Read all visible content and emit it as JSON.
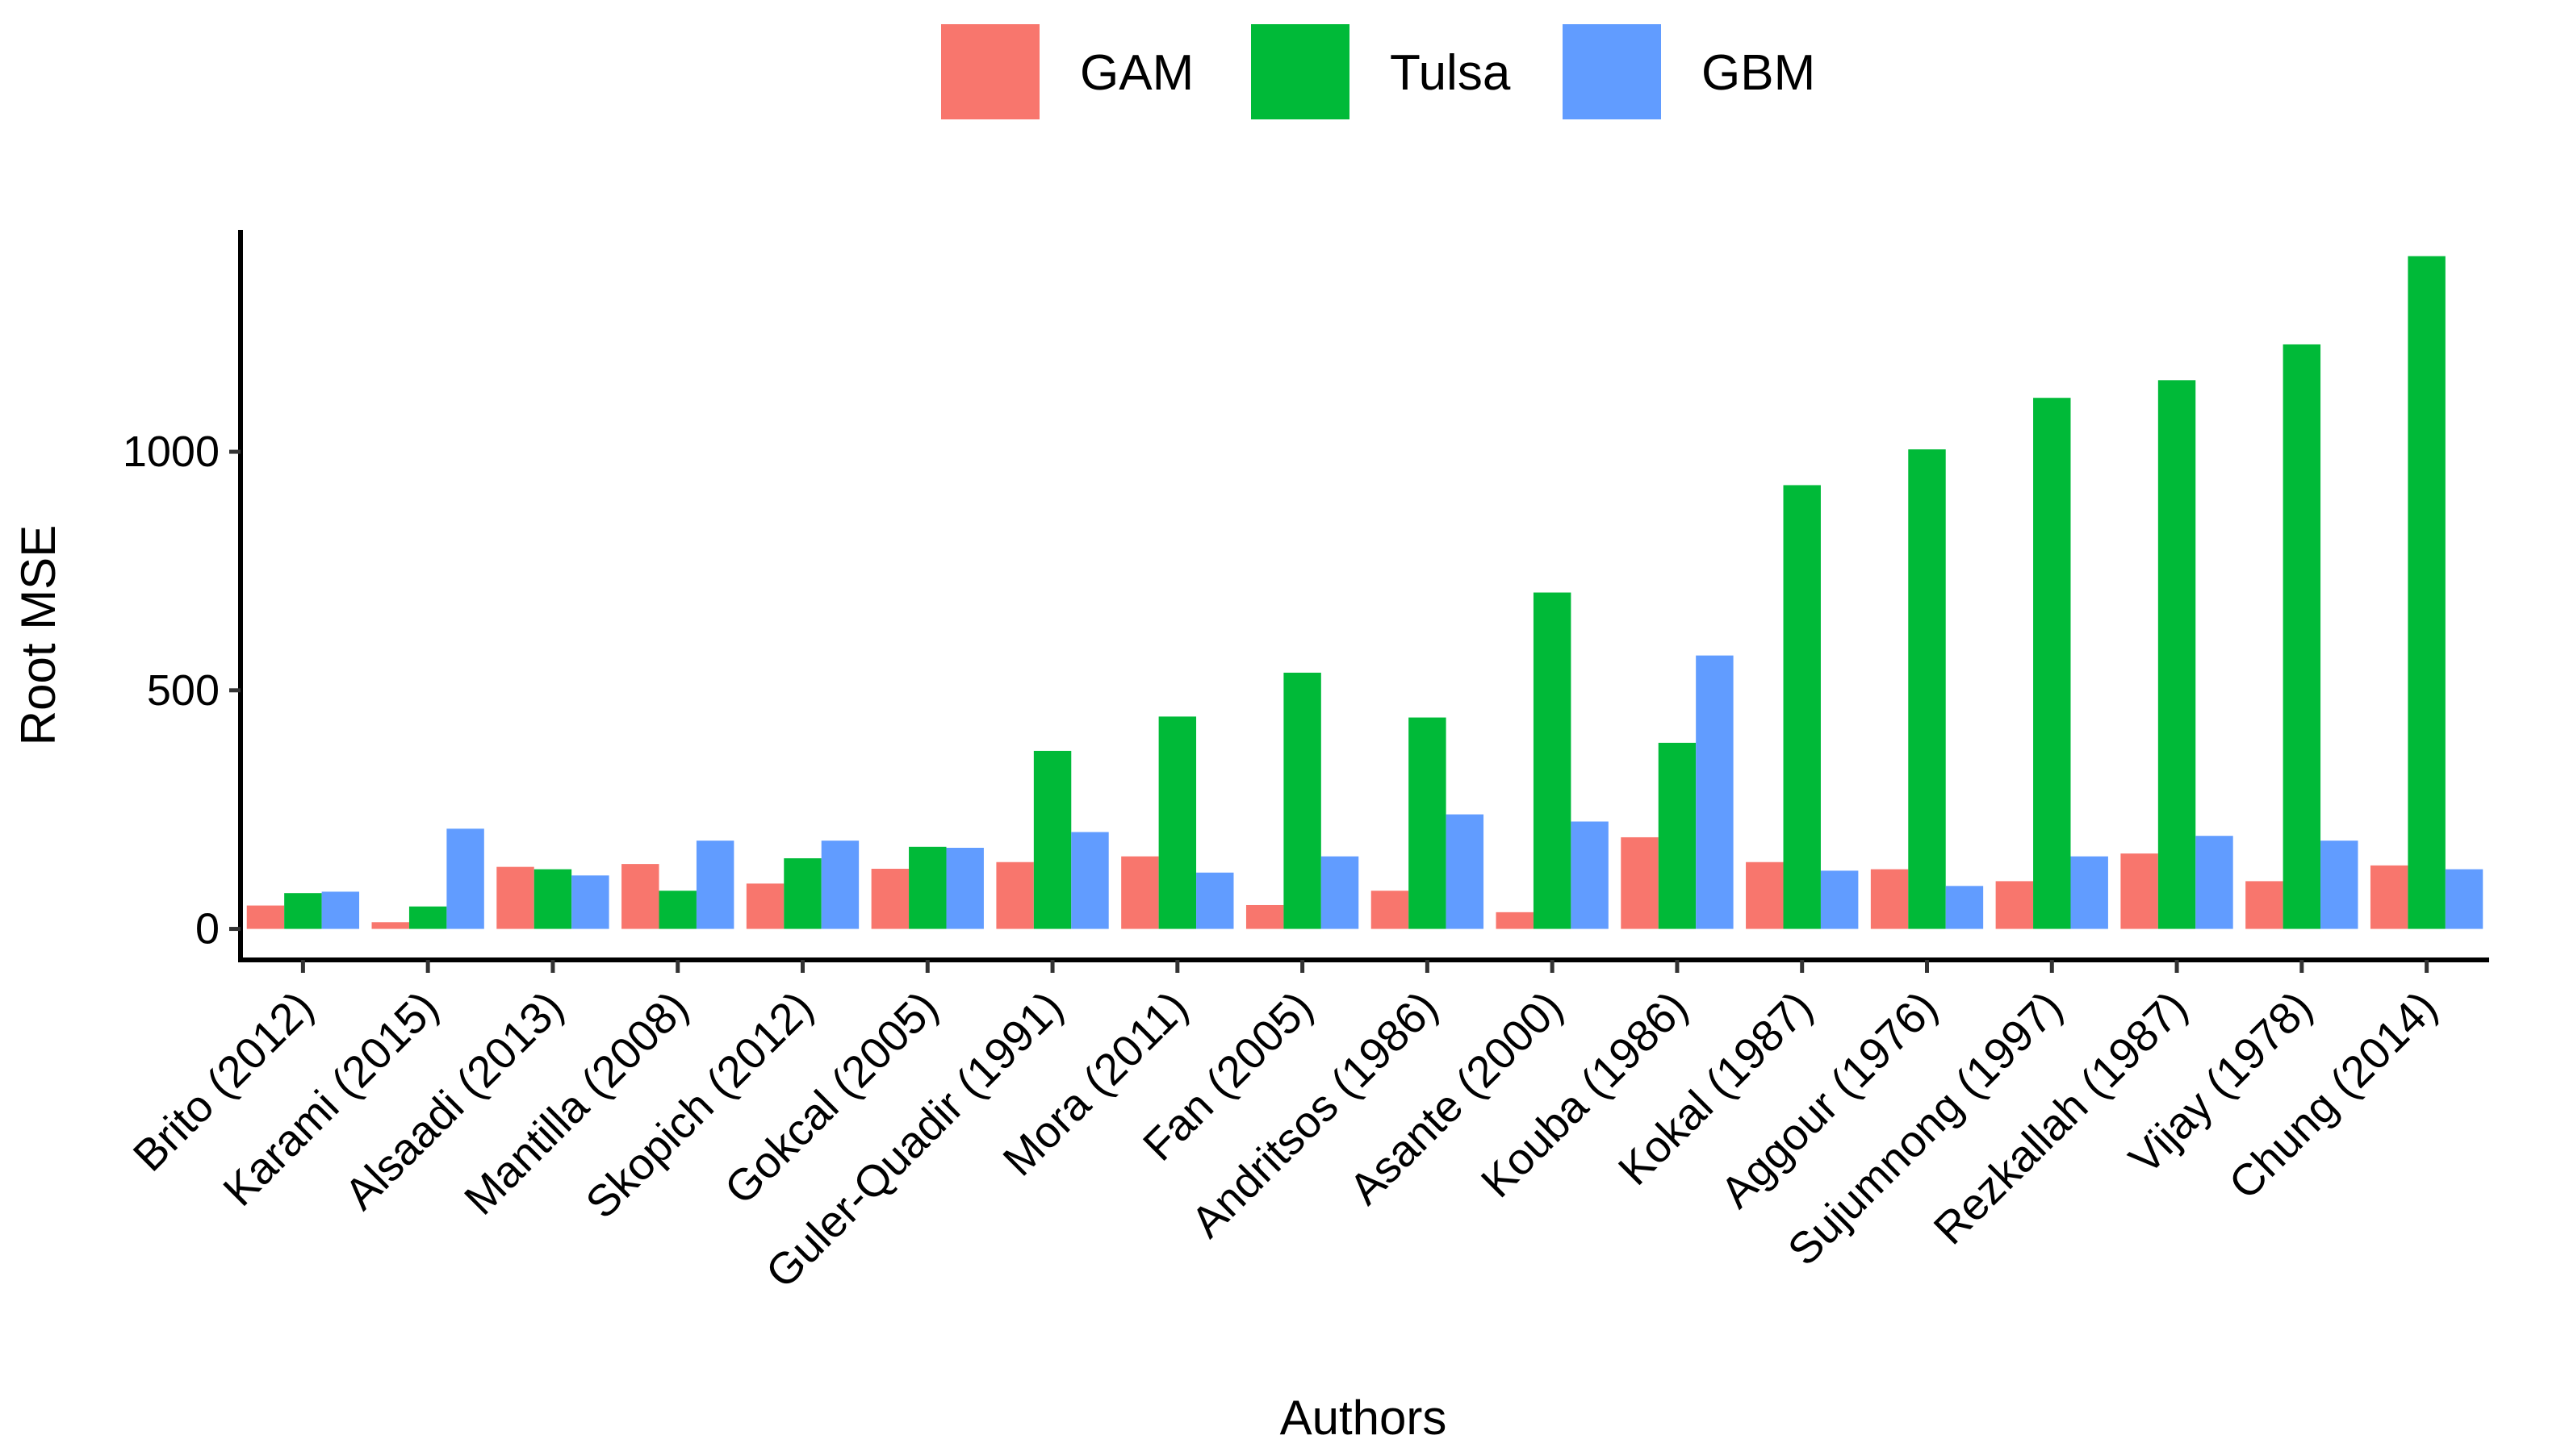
{
  "chart_data": {
    "type": "bar",
    "title": "",
    "xlabel": "Authors",
    "ylabel": "Root MSE",
    "ylim": [
      -65,
      1465
    ],
    "yticks": [
      0,
      500,
      1000
    ],
    "ytick_labels": [
      "0",
      "500",
      "1000"
    ],
    "grid": false,
    "legend_position": "top",
    "categories": [
      "Brito (2012)",
      "Karami (2015)",
      "Alsaadi (2013)",
      "Mantilla (2008)",
      "Skopich (2012)",
      "Gokcal (2005)",
      "Guler-Quadir (1991)",
      "Mora (2011)",
      "Fan (2005)",
      "Andritsos (1986)",
      "Asante (2000)",
      "Kouba (1986)",
      "Kokal (1987)",
      "Aggour (1976)",
      "Sujumnong (1997)",
      "Rezkallah (1987)",
      "Vijay (1978)",
      "Chung (2014)"
    ],
    "series": [
      {
        "name": "GAM",
        "color": "#F8766D",
        "values": [
          49,
          14,
          130,
          136,
          95,
          126,
          140,
          152,
          50,
          80,
          35,
          192,
          140,
          125,
          100,
          158,
          100,
          133
        ]
      },
      {
        "name": "Tulsa",
        "color": "#00BA38",
        "values": [
          75,
          47,
          125,
          80,
          148,
          172,
          373,
          445,
          537,
          443,
          705,
          390,
          930,
          1005,
          1113,
          1150,
          1225,
          1410
        ]
      },
      {
        "name": "GBM",
        "color": "#619CFF",
        "values": [
          78,
          210,
          112,
          185,
          185,
          170,
          203,
          118,
          152,
          240,
          225,
          573,
          122,
          90,
          152,
          195,
          185,
          125
        ]
      }
    ]
  }
}
